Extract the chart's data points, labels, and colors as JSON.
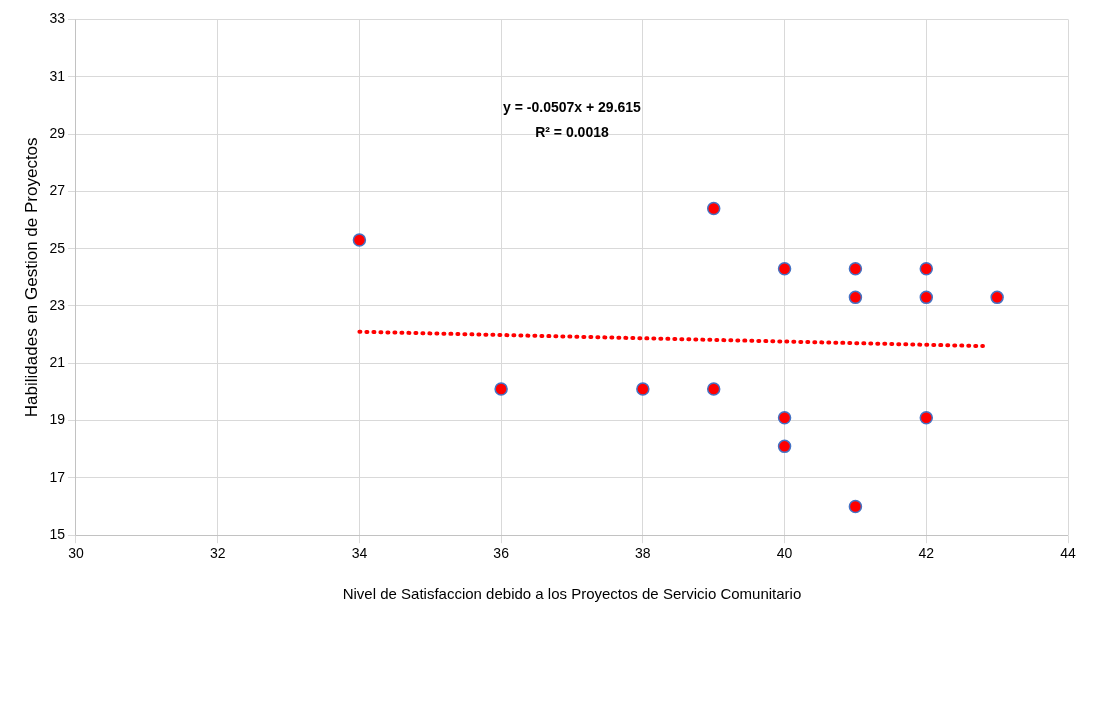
{
  "chart_data": {
    "type": "scatter",
    "xlabel": "Nivel de Satisfaccion debido a los Proyectos de Servicio Comunitario",
    "ylabel": "Habilidades en Gestion de Proyectos",
    "annotations": [
      "y = -0.0507x + 29.615",
      "R² = 0.0018"
    ],
    "series": [
      {
        "color": "#ff0000",
        "marker": "circle",
        "x": [
          34,
          36,
          38,
          39,
          39,
          40,
          40,
          40,
          41,
          41,
          41,
          42,
          42,
          42,
          43
        ],
        "values": [
          25.3,
          20.1,
          20.1,
          26.4,
          20.1,
          24.3,
          19.1,
          18.1,
          24.3,
          23.3,
          16.0,
          24.3,
          23.3,
          19.1,
          23.3
        ]
      },
      {
        "type": "line",
        "color": "#ff0000",
        "marker": "none",
        "line_style": "dotted",
        "x": [
          34,
          42.8
        ],
        "values": [
          22.1,
          21.6
        ]
      }
    ],
    "xlim": [
      30,
      44
    ],
    "xticks": [
      30,
      32,
      34,
      36,
      38,
      40,
      42,
      44
    ],
    "ylim": [
      15,
      33
    ],
    "yticks": [
      15,
      17,
      19,
      21,
      23,
      25,
      27,
      29,
      31,
      33
    ],
    "grid": true,
    "legend": false
  }
}
